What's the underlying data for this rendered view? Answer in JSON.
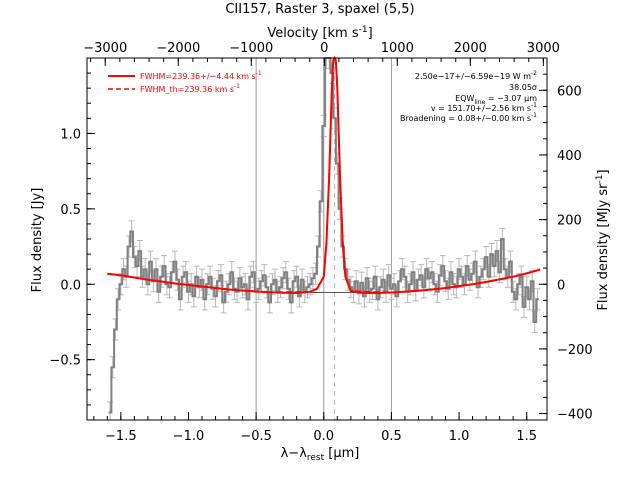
{
  "chart_data": {
    "type": "line",
    "title": "CII157, Raster 3, spaxel (5,5)",
    "xlabel": "λ−λ",
    "xlabel_sub": "rest",
    "xlabel_unit": "[μm]",
    "ylabel": "Flux density [Jy]",
    "ylabel_right": "Flux density [MJy sr",
    "ylabel_right_sup": "-1",
    "ylabel_right_end": "]",
    "xlabel_top": "Velocity [km s",
    "xlabel_top_sup": "-1",
    "xlabel_top_end": "]",
    "xlim": [
      -1.75,
      1.65
    ],
    "ylim": [
      -0.9,
      1.5
    ],
    "xlim_top": [
      -3250,
      3050
    ],
    "ylim_right": [
      -420,
      700
    ],
    "x_ticks": [
      -1.5,
      -1.0,
      -0.5,
      0.0,
      0.5,
      1.0,
      1.5
    ],
    "x_tick_labels": [
      "−1.5",
      "−1.0",
      "−0.5",
      "0.0",
      "0.5",
      "1.0",
      "1.5"
    ],
    "y_ticks": [
      -0.5,
      0.0,
      0.5,
      1.0
    ],
    "y_tick_labels": [
      "−0.5",
      "0.0",
      "0.5",
      "1.0"
    ],
    "top_ticks": [
      -3000,
      -2000,
      -1000,
      0,
      1000,
      2000,
      3000
    ],
    "top_tick_labels": [
      "−3000",
      "−2000",
      "−1000",
      "0",
      "1000",
      "2000",
      "3000"
    ],
    "right_ticks": [
      -400,
      -200,
      0,
      200,
      400,
      600
    ],
    "right_tick_labels": [
      "−400",
      "−200",
      "0",
      "200",
      "400",
      "600"
    ],
    "vertical_lines": [
      -0.5,
      0.0,
      0.5
    ],
    "dashed_vertical_line": 0.08,
    "legend_position": "top-left",
    "legend": [
      {
        "label": "FWHM=239.36+/−4.44 km s",
        "sup": "-1",
        "style": "solid",
        "color": "#ff0000"
      },
      {
        "label": "FWHM_th=239.36 km s",
        "sup": "-1",
        "style": "dashed",
        "color": "#ff0000"
      }
    ],
    "annotations": [
      "2.50e−17+/−6.59e−19 W m",
      "38.05σ",
      "EQW",
      "= −3.07 μm",
      "v = 151.70+/−2.56 km s",
      "Broadening = 0.08+/−0.00 km s"
    ],
    "annotation_sup": [
      "-2",
      "-1",
      "-1"
    ],
    "annotation_sub": "line",
    "series": [
      {
        "name": "FWHM=239.36+/−4.44 km s⁻¹",
        "style": "solid",
        "color": "#ff0000",
        "x": [
          -1.6,
          -1.5,
          -1.4,
          -1.3,
          -1.2,
          -1.1,
          -1.0,
          -0.9,
          -0.8,
          -0.7,
          -0.6,
          -0.5,
          -0.4,
          -0.3,
          -0.2,
          -0.1,
          -0.05,
          0.0,
          0.02,
          0.04,
          0.06,
          0.07,
          0.08,
          0.09,
          0.1,
          0.12,
          0.14,
          0.16,
          0.2,
          0.3,
          0.4,
          0.5,
          0.6,
          0.7,
          0.8,
          0.9,
          1.0,
          1.1,
          1.2,
          1.3,
          1.4,
          1.5,
          1.6
        ],
        "y": [
          0.07,
          0.06,
          0.045,
          0.03,
          0.018,
          0.005,
          -0.005,
          -0.015,
          -0.025,
          -0.035,
          -0.042,
          -0.048,
          -0.053,
          -0.056,
          -0.058,
          -0.05,
          -0.03,
          0.05,
          0.28,
          0.72,
          1.3,
          1.48,
          1.5,
          1.48,
          1.3,
          0.72,
          0.28,
          0.05,
          -0.045,
          -0.058,
          -0.058,
          -0.055,
          -0.05,
          -0.043,
          -0.035,
          -0.025,
          -0.012,
          0.0,
          0.015,
          0.032,
          0.05,
          0.072,
          0.098
        ]
      },
      {
        "name": "FWHM_th=239.36 km s⁻¹",
        "style": "dashed",
        "color": "#ff0000",
        "x": [
          -1.6,
          -1.3,
          -1.0,
          -0.7,
          -0.4,
          -0.1,
          -0.05,
          0.0,
          0.02,
          0.04,
          0.06,
          0.07,
          0.08,
          0.09,
          0.1,
          0.12,
          0.14,
          0.16,
          0.2,
          0.5,
          0.8,
          1.1,
          1.4,
          1.6
        ],
        "y": [
          0.07,
          0.03,
          -0.005,
          -0.035,
          -0.053,
          -0.05,
          -0.03,
          0.05,
          0.29,
          0.74,
          1.31,
          1.49,
          1.5,
          1.49,
          1.31,
          0.74,
          0.29,
          0.05,
          -0.045,
          -0.055,
          -0.035,
          0.0,
          0.05,
          0.098
        ]
      },
      {
        "name": "spectrum",
        "style": "steps",
        "color": "#808080",
        "x": [
          -1.58,
          -1.56,
          -1.54,
          -1.52,
          -1.5,
          -1.48,
          -1.46,
          -1.44,
          -1.42,
          -1.4,
          -1.38,
          -1.36,
          -1.34,
          -1.32,
          -1.3,
          -1.28,
          -1.26,
          -1.24,
          -1.22,
          -1.2,
          -1.18,
          -1.16,
          -1.14,
          -1.12,
          -1.1,
          -1.08,
          -1.06,
          -1.04,
          -1.02,
          -1.0,
          -0.98,
          -0.96,
          -0.94,
          -0.92,
          -0.9,
          -0.88,
          -0.86,
          -0.84,
          -0.82,
          -0.8,
          -0.78,
          -0.76,
          -0.74,
          -0.72,
          -0.7,
          -0.68,
          -0.66,
          -0.64,
          -0.62,
          -0.6,
          -0.58,
          -0.56,
          -0.54,
          -0.52,
          -0.5,
          -0.48,
          -0.46,
          -0.44,
          -0.42,
          -0.4,
          -0.38,
          -0.36,
          -0.34,
          -0.32,
          -0.3,
          -0.28,
          -0.26,
          -0.24,
          -0.22,
          -0.2,
          -0.18,
          -0.16,
          -0.14,
          -0.12,
          -0.1,
          -0.08,
          -0.06,
          -0.04,
          -0.02,
          0.0,
          0.02,
          0.04,
          0.06,
          0.08,
          0.1,
          0.12,
          0.14,
          0.16,
          0.18,
          0.2,
          0.22,
          0.24,
          0.26,
          0.28,
          0.3,
          0.32,
          0.34,
          0.36,
          0.38,
          0.4,
          0.42,
          0.44,
          0.46,
          0.48,
          0.5,
          0.52,
          0.54,
          0.56,
          0.58,
          0.6,
          0.62,
          0.64,
          0.66,
          0.68,
          0.7,
          0.72,
          0.74,
          0.76,
          0.78,
          0.8,
          0.82,
          0.84,
          0.86,
          0.88,
          0.9,
          0.92,
          0.94,
          0.96,
          0.98,
          1.0,
          1.02,
          1.04,
          1.06,
          1.08,
          1.1,
          1.12,
          1.14,
          1.16,
          1.18,
          1.2,
          1.22,
          1.24,
          1.26,
          1.28,
          1.3,
          1.32,
          1.34,
          1.36,
          1.38,
          1.4,
          1.42,
          1.44,
          1.46,
          1.48,
          1.5,
          1.52,
          1.54,
          1.56,
          1.58
        ],
        "y": [
          -0.85,
          -0.55,
          -0.3,
          -0.1,
          0.0,
          0.1,
          0.05,
          0.25,
          0.35,
          0.18,
          0.12,
          0.22,
          0.05,
          0.1,
          0.0,
          0.15,
          0.02,
          0.1,
          -0.05,
          0.05,
          0.12,
          0.0,
          -0.02,
          0.08,
          0.15,
          0.03,
          -0.1,
          0.05,
          0.08,
          -0.05,
          0.0,
          -0.08,
          0.05,
          -0.02,
          0.03,
          -0.1,
          0.0,
          0.05,
          -0.03,
          -0.08,
          0.02,
          0.06,
          -0.12,
          -0.05,
          0.0,
          0.08,
          -0.03,
          -0.05,
          0.04,
          -0.02,
          0.0,
          -0.1,
          0.05,
          0.08,
          -0.05,
          -0.03,
          0.02,
          0.06,
          -0.02,
          -0.12,
          0.0,
          0.03,
          -0.05,
          -0.02,
          0.04,
          0.08,
          -0.03,
          -0.12,
          0.02,
          0.05,
          -0.08,
          0.03,
          -0.05,
          -0.02,
          0.0,
          0.04,
          0.07,
          0.25,
          0.55,
          1.05,
          1.5,
          1.5,
          1.4,
          1.1,
          0.8,
          0.5,
          0.25,
          0.1,
          0.03,
          -0.02,
          -0.05,
          0.02,
          -0.06,
          0.01,
          -0.08,
          0.04,
          -0.05,
          -0.03,
          0.05,
          -0.1,
          -0.02,
          0.03,
          -0.05,
          0.06,
          -0.03,
          0.0,
          -0.08,
          0.02,
          0.1,
          0.05,
          -0.05,
          0.0,
          0.08,
          -0.04,
          0.03,
          0.06,
          -0.02,
          0.1,
          0.04,
          0.08,
          0.0,
          -0.05,
          0.06,
          0.12,
          0.02,
          -0.03,
          0.08,
          0.0,
          -0.02,
          0.1,
          0.05,
          0.0,
          0.12,
          0.03,
          0.07,
          0.15,
          -0.02,
          0.05,
          0.1,
          0.18,
          0.05,
          0.2,
          0.12,
          0.22,
          0.08,
          0.3,
          0.1,
          0.05,
          0.15,
          -0.05,
          -0.1,
          0.0,
          0.05,
          -0.15,
          -0.02,
          -0.1,
          0.02,
          -0.25,
          -0.1
        ],
        "err": 0.07
      }
    ]
  }
}
